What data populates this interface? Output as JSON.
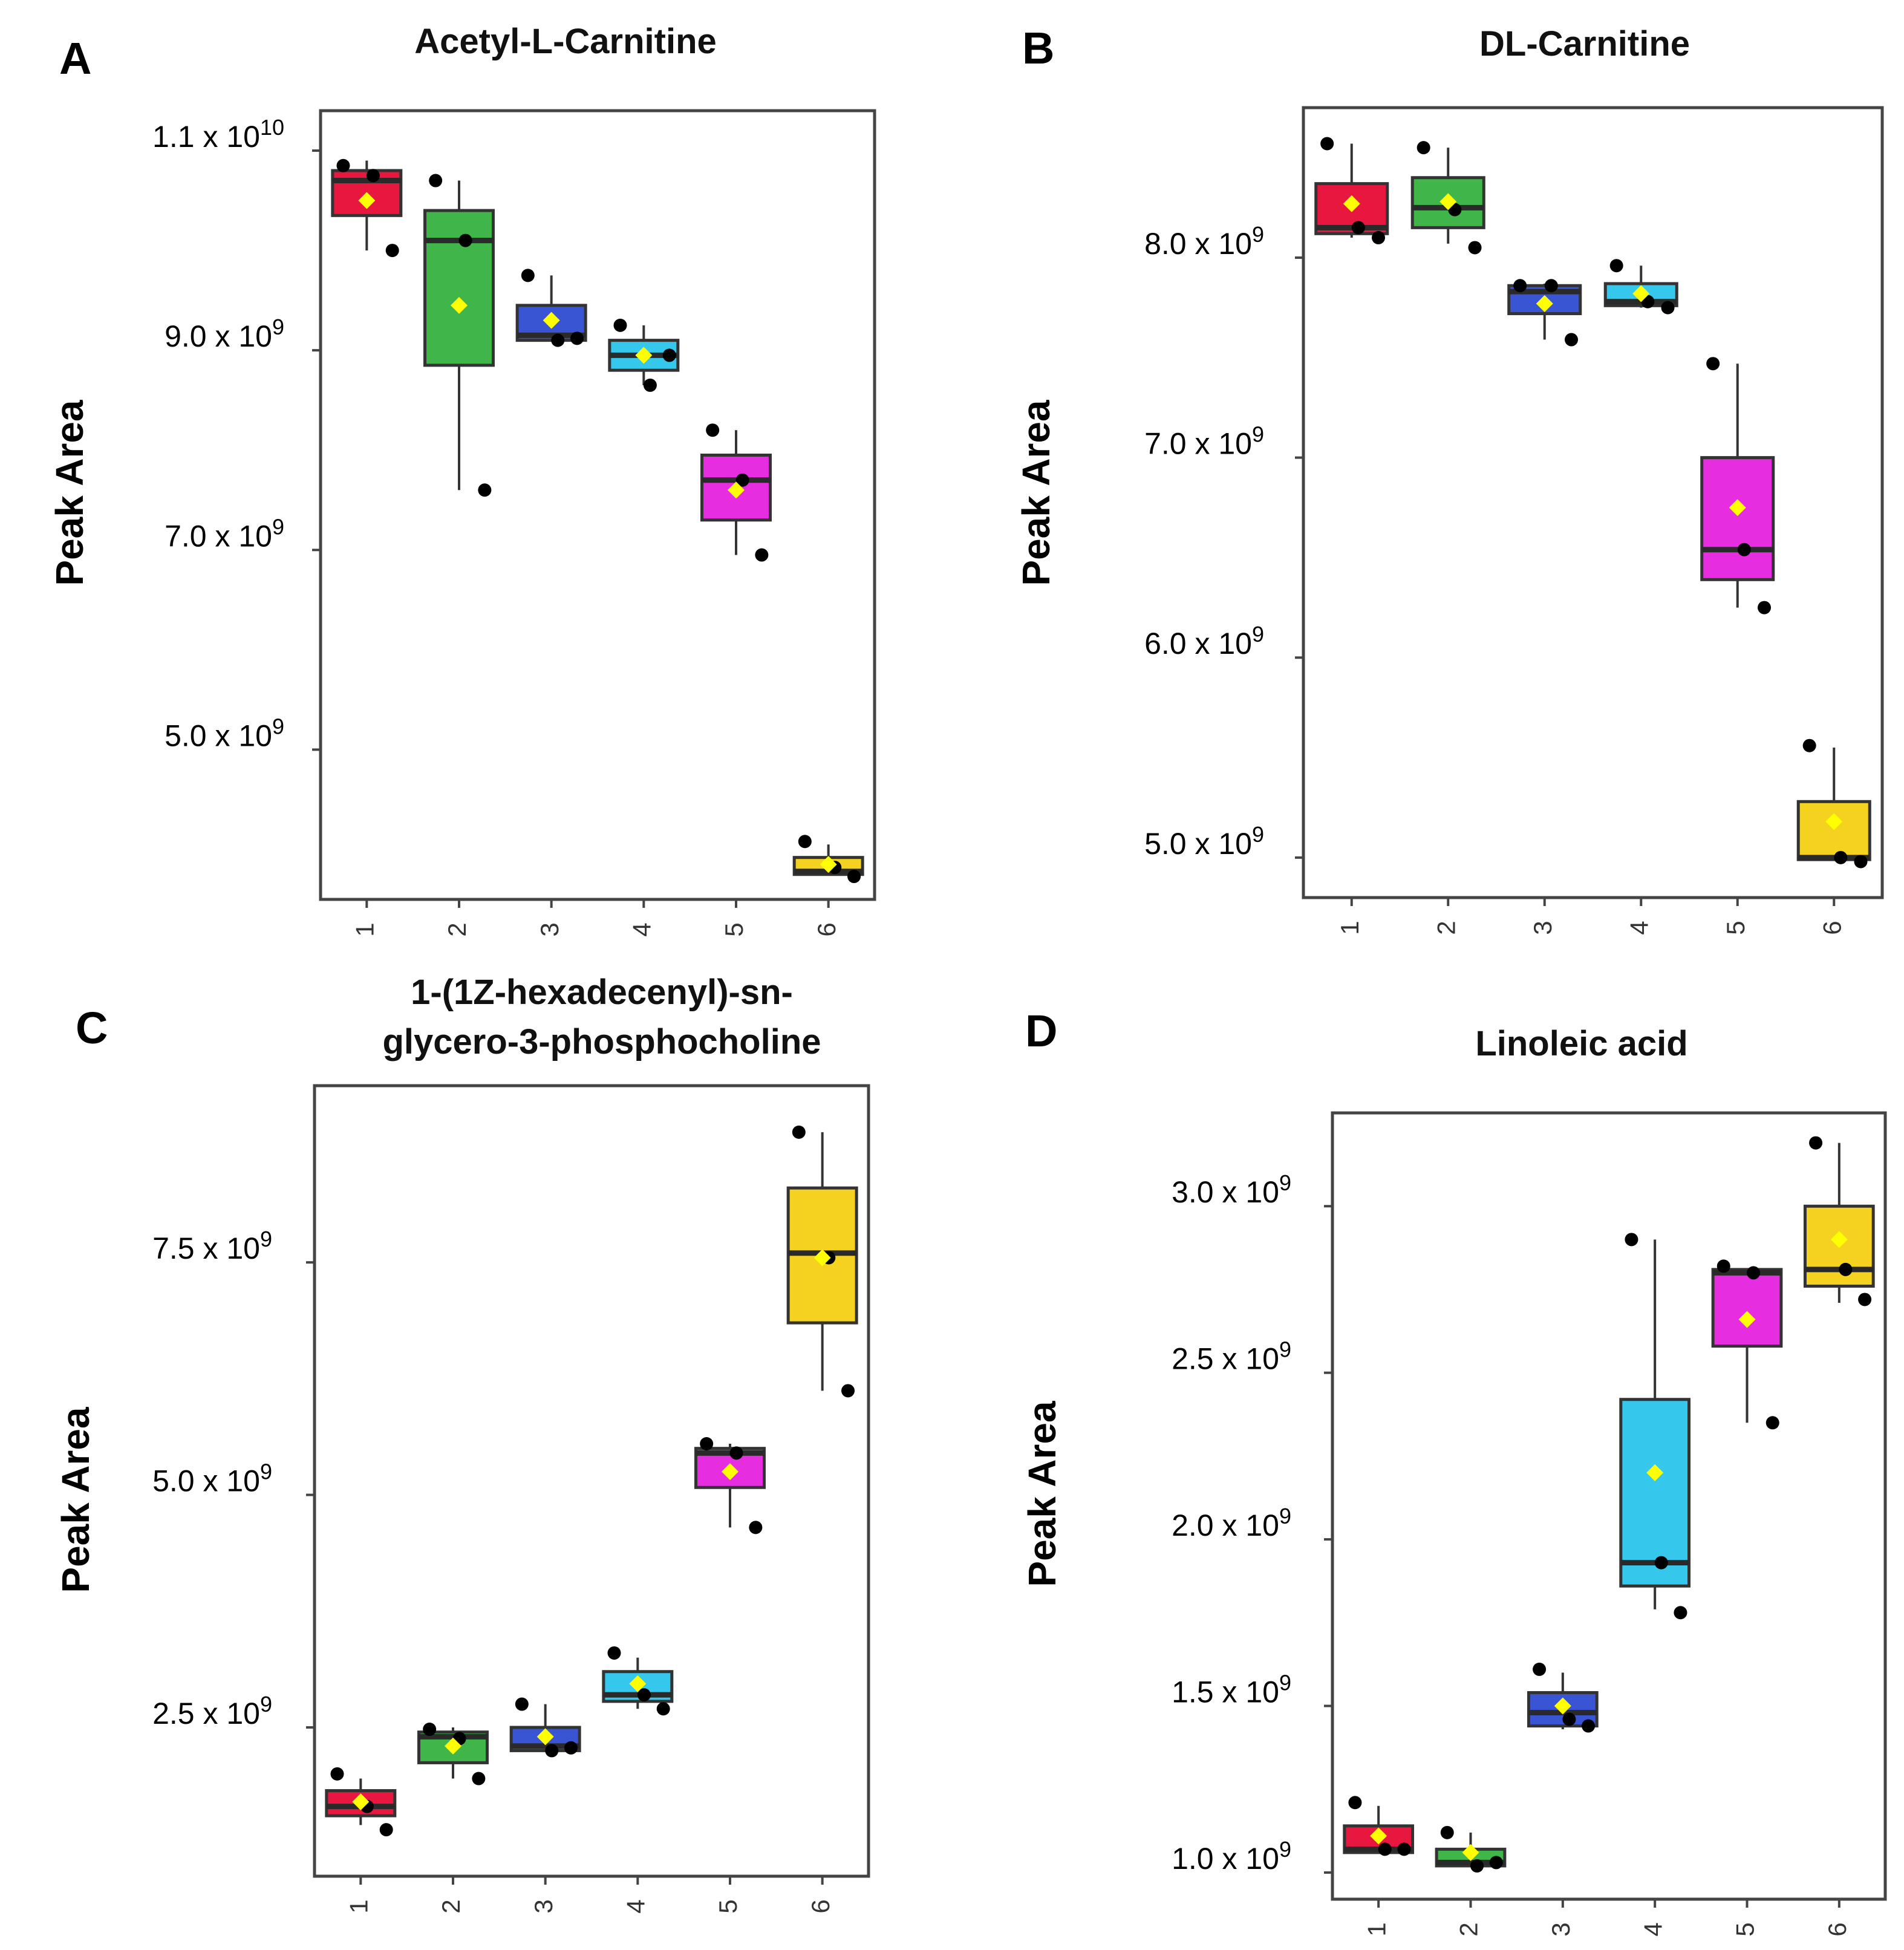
{
  "figure": {
    "group_colors": [
      "#e8173f",
      "#3fb54a",
      "#3a55d4",
      "#35c8ec",
      "#e62ee0",
      "#f5d21f"
    ],
    "mean_marker_color": "#ffff00",
    "point_color": "#000000",
    "whisker_color": "#333333"
  },
  "chart_data": [
    {
      "id": "A",
      "panel": "A",
      "type": "box",
      "title": [
        "Acetyl-L-Carnitine"
      ],
      "ylabel": "Peak Area",
      "categories": [
        "1",
        "2",
        "3",
        "4",
        "5",
        "6"
      ],
      "ylim": [
        3500000000.0,
        11400000000.0
      ],
      "yticks": [
        {
          "value": 11000000000.0,
          "mantissa": "1.1 x 10",
          "exp": "10"
        },
        {
          "value": 9000000000.0,
          "mantissa": "9.0 x 10",
          "exp": "9"
        },
        {
          "value": 7000000000.0,
          "mantissa": "7.0 x 10",
          "exp": "9"
        },
        {
          "value": 5000000000.0,
          "mantissa": "5.0 x 10",
          "exp": "9"
        }
      ],
      "groups": [
        {
          "q1": 10350000000.0,
          "median": 10700000000.0,
          "q3": 10800000000.0,
          "whisker_low": 10000000000.0,
          "whisker_high": 10900000000.0,
          "mean": 10500000000.0,
          "points": [
            10850000000.0,
            10750000000.0,
            10000000000.0
          ]
        },
        {
          "q1": 8850000000.0,
          "median": 10100000000.0,
          "q3": 10400000000.0,
          "whisker_low": 7600000000.0,
          "whisker_high": 10700000000.0,
          "mean": 9450000000.0,
          "points": [
            10700000000.0,
            10100000000.0,
            7600000000.0
          ]
        },
        {
          "q1": 9100000000.0,
          "median": 9150000000.0,
          "q3": 9450000000.0,
          "whisker_low": 9100000000.0,
          "whisker_high": 9750000000.0,
          "mean": 9300000000.0,
          "points": [
            9750000000.0,
            9100000000.0,
            9120000000.0
          ]
        },
        {
          "q1": 8800000000.0,
          "median": 8950000000.0,
          "q3": 9100000000.0,
          "whisker_low": 8650000000.0,
          "whisker_high": 9250000000.0,
          "mean": 8950000000.0,
          "points": [
            9250000000.0,
            8650000000.0,
            8950000000.0
          ]
        },
        {
          "q1": 7300000000.0,
          "median": 7700000000.0,
          "q3": 7950000000.0,
          "whisker_low": 6950000000.0,
          "whisker_high": 8200000000.0,
          "mean": 7600000000.0,
          "points": [
            8200000000.0,
            7700000000.0,
            6950000000.0
          ]
        },
        {
          "q1": 3750000000.0,
          "median": 3780000000.0,
          "q3": 3920000000.0,
          "whisker_low": 3750000000.0,
          "whisker_high": 4050000000.0,
          "mean": 3850000000.0,
          "points": [
            4080000000.0,
            3820000000.0,
            3730000000.0
          ]
        }
      ]
    },
    {
      "id": "B",
      "panel": "B",
      "type": "box",
      "title": [
        "DL-Carnitine"
      ],
      "ylabel": "Peak Area",
      "categories": [
        "1",
        "2",
        "3",
        "4",
        "5",
        "6"
      ],
      "ylim": [
        4800000000.0,
        8750000000.0
      ],
      "yticks": [
        {
          "value": 8000000000.0,
          "mantissa": "8.0 x 10",
          "exp": "9"
        },
        {
          "value": 7000000000.0,
          "mantissa": "7.0 x 10",
          "exp": "9"
        },
        {
          "value": 6000000000.0,
          "mantissa": "6.0 x 10",
          "exp": "9"
        },
        {
          "value": 5000000000.0,
          "mantissa": "5.0 x 10",
          "exp": "9"
        }
      ],
      "groups": [
        {
          "q1": 8120000000.0,
          "median": 8150000000.0,
          "q3": 8370000000.0,
          "whisker_low": 8100000000.0,
          "whisker_high": 8570000000.0,
          "mean": 8270000000.0,
          "points": [
            8570000000.0,
            8150000000.0,
            8100000000.0
          ]
        },
        {
          "q1": 8150000000.0,
          "median": 8250000000.0,
          "q3": 8400000000.0,
          "whisker_low": 8070000000.0,
          "whisker_high": 8550000000.0,
          "mean": 8280000000.0,
          "points": [
            8550000000.0,
            8240000000.0,
            8050000000.0
          ]
        },
        {
          "q1": 7720000000.0,
          "median": 7830000000.0,
          "q3": 7860000000.0,
          "whisker_low": 7590000000.0,
          "whisker_high": 7870000000.0,
          "mean": 7770000000.0,
          "points": [
            7860000000.0,
            7860000000.0,
            7590000000.0
          ]
        },
        {
          "q1": 7760000000.0,
          "median": 7780000000.0,
          "q3": 7870000000.0,
          "whisker_low": 7750000000.0,
          "whisker_high": 7960000000.0,
          "mean": 7820000000.0,
          "points": [
            7960000000.0,
            7780000000.0,
            7750000000.0
          ]
        },
        {
          "q1": 6390000000.0,
          "median": 6540000000.0,
          "q3": 7000000000.0,
          "whisker_low": 6250000000.0,
          "whisker_high": 7470000000.0,
          "mean": 6750000000.0,
          "points": [
            7470000000.0,
            6540000000.0,
            6250000000.0
          ]
        },
        {
          "q1": 4990000000.0,
          "median": 5000000000.0,
          "q3": 5280000000.0,
          "whisker_low": 4990000000.0,
          "whisker_high": 5550000000.0,
          "mean": 5180000000.0,
          "points": [
            5560000000.0,
            5000000000.0,
            4980000000.0
          ]
        }
      ]
    },
    {
      "id": "C",
      "panel": "C",
      "type": "box",
      "title": [
        "1-(1Z-hexadecenyl)-sn-",
        "glycero-3-phosphocholine"
      ],
      "ylabel": "Peak Area",
      "categories": [
        "1",
        "2",
        "3",
        "4",
        "5",
        "6"
      ],
      "ylim": [
        900000000.0,
        9400000000.0
      ],
      "yticks": [
        {
          "value": 7500000000.0,
          "mantissa": "7.5 x 10",
          "exp": "9"
        },
        {
          "value": 5000000000.0,
          "mantissa": "5.0 x 10",
          "exp": "9"
        },
        {
          "value": 2500000000.0,
          "mantissa": "2.5 x 10",
          "exp": "9"
        }
      ],
      "groups": [
        {
          "q1": 1550000000.0,
          "median": 1650000000.0,
          "q3": 1820000000.0,
          "whisker_low": 1450000000.0,
          "whisker_high": 1950000000.0,
          "mean": 1700000000.0,
          "points": [
            2000000000.0,
            1650000000.0,
            1400000000.0
          ]
        },
        {
          "q1": 2120000000.0,
          "median": 2400000000.0,
          "q3": 2450000000.0,
          "whisker_low": 1950000000.0,
          "whisker_high": 2500000000.0,
          "mean": 2300000000.0,
          "points": [
            2480000000.0,
            2380000000.0,
            1950000000.0
          ]
        },
        {
          "q1": 2250000000.0,
          "median": 2300000000.0,
          "q3": 2500000000.0,
          "whisker_low": 2250000000.0,
          "whisker_high": 2750000000.0,
          "mean": 2400000000.0,
          "points": [
            2750000000.0,
            2250000000.0,
            2280000000.0
          ]
        },
        {
          "q1": 2780000000.0,
          "median": 2850000000.0,
          "q3": 3100000000.0,
          "whisker_low": 2700000000.0,
          "whisker_high": 3250000000.0,
          "mean": 2970000000.0,
          "points": [
            3300000000.0,
            2850000000.0,
            2700000000.0
          ]
        },
        {
          "q1": 5080000000.0,
          "median": 5450000000.0,
          "q3": 5500000000.0,
          "whisker_low": 4650000000.0,
          "whisker_high": 5550000000.0,
          "mean": 5250000000.0,
          "points": [
            5550000000.0,
            5450000000.0,
            4650000000.0
          ]
        },
        {
          "q1": 6850000000.0,
          "median": 7600000000.0,
          "q3": 8300000000.0,
          "whisker_low": 6120000000.0,
          "whisker_high": 8900000000.0,
          "mean": 7550000000.0,
          "points": [
            8900000000.0,
            7550000000.0,
            6120000000.0
          ]
        }
      ]
    },
    {
      "id": "D",
      "panel": "D",
      "type": "box",
      "title": [
        "Linoleic acid"
      ],
      "ylabel": "Peak Area",
      "categories": [
        "1",
        "2",
        "3",
        "4",
        "5",
        "6"
      ],
      "ylim": [
        920000000.0,
        3280000000.0
      ],
      "yticks": [
        {
          "value": 3000000000.0,
          "mantissa": "3.0 x 10",
          "exp": "9"
        },
        {
          "value": 2500000000.0,
          "mantissa": "2.5 x 10",
          "exp": "9"
        },
        {
          "value": 2000000000.0,
          "mantissa": "2.0 x 10",
          "exp": "9"
        },
        {
          "value": 1500000000.0,
          "mantissa": "1.5 x 10",
          "exp": "9"
        },
        {
          "value": 1000000000.0,
          "mantissa": "1.0 x 10",
          "exp": "9"
        }
      ],
      "groups": [
        {
          "q1": 1060000000.0,
          "median": 1070000000.0,
          "q3": 1140000000.0,
          "whisker_low": 1060000000.0,
          "whisker_high": 1200000000.0,
          "mean": 1110000000.0,
          "points": [
            1210000000.0,
            1070000000.0,
            1070000000.0
          ]
        },
        {
          "q1": 1020000000.0,
          "median": 1030000000.0,
          "q3": 1070000000.0,
          "whisker_low": 1020000000.0,
          "whisker_high": 1120000000.0,
          "mean": 1060000000.0,
          "points": [
            1120000000.0,
            1020000000.0,
            1030000000.0
          ]
        },
        {
          "q1": 1440000000.0,
          "median": 1480000000.0,
          "q3": 1540000000.0,
          "whisker_low": 1430000000.0,
          "whisker_high": 1600000000.0,
          "mean": 1500000000.0,
          "points": [
            1610000000.0,
            1460000000.0,
            1440000000.0
          ]
        },
        {
          "q1": 1860000000.0,
          "median": 1930000000.0,
          "q3": 2420000000.0,
          "whisker_low": 1790000000.0,
          "whisker_high": 2900000000.0,
          "mean": 2200000000.0,
          "points": [
            2900000000.0,
            1930000000.0,
            1780000000.0
          ]
        },
        {
          "q1": 2580000000.0,
          "median": 2800000000.0,
          "q3": 2810000000.0,
          "whisker_low": 2350000000.0,
          "whisker_high": 2810000000.0,
          "mean": 2660000000.0,
          "points": [
            2820000000.0,
            2800000000.0,
            2350000000.0
          ]
        },
        {
          "q1": 2760000000.0,
          "median": 2810000000.0,
          "q3": 3000000000.0,
          "whisker_low": 2710000000.0,
          "whisker_high": 3190000000.0,
          "mean": 2900000000.0,
          "points": [
            3190000000.0,
            2810000000.0,
            2720000000.0
          ]
        }
      ]
    }
  ]
}
